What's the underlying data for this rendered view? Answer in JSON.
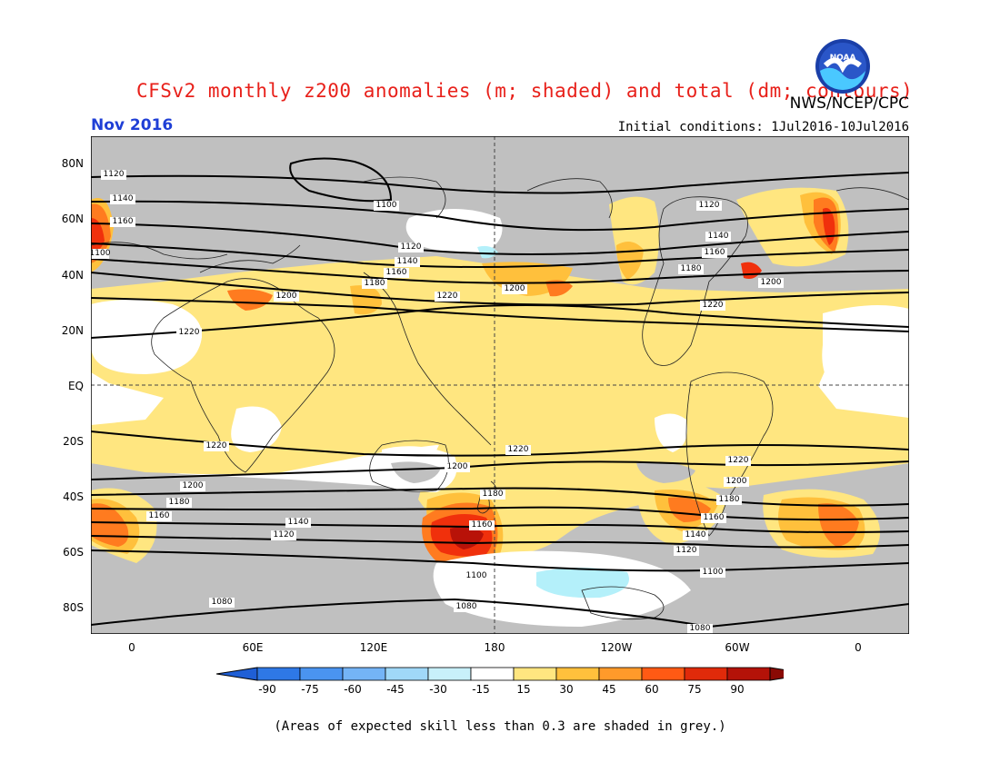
{
  "header": {
    "title": "CFSv2 monthly z200 anomalies (m; shaded) and total (dm; contours)",
    "agency": "NWS/NCEP/CPC",
    "month": "Nov 2016",
    "initial_conditions": "Initial conditions: 1Jul2016-10Jul2016",
    "logo_text": "NOAA"
  },
  "map": {
    "lat_labels": [
      "80N",
      "60N",
      "40N",
      "20N",
      "EQ",
      "20S",
      "40S",
      "60S",
      "80S"
    ],
    "lon_labels": [
      "0",
      "60E",
      "120E",
      "180",
      "120W",
      "60W",
      "0"
    ],
    "contour_labels": [
      "1120",
      "1140",
      "1160",
      "1180",
      "1100",
      "1120",
      "1140",
      "1160",
      "1180",
      "1200",
      "1160",
      "1180",
      "1200",
      "1220",
      "1200",
      "1220",
      "1120",
      "1140",
      "1160",
      "1180",
      "1200",
      "1220",
      "1220",
      "1220",
      "1200",
      "1180",
      "1160",
      "1140",
      "1120",
      "1100",
      "1080",
      "1080",
      "1080",
      "1200",
      "1180",
      "1160",
      "1140",
      "1120",
      "1100",
      "1220",
      "1200",
      "1180",
      "1160"
    ],
    "colors": {
      "grey": "#c0c0c0",
      "lightyellow": "#ffe680",
      "yellow": "#ffc03c",
      "orange": "#ff7b1f",
      "red": "#f0300c",
      "darkred": "#b81208",
      "lightblue": "#b4f0fa",
      "ocean_background": "#c0c0c0"
    }
  },
  "colorbar": {
    "labels": [
      "-90",
      "-75",
      "-60",
      "-45",
      "-30",
      "-15",
      "15",
      "30",
      "45",
      "60",
      "75",
      "90"
    ],
    "colors": [
      "#1f5fd6",
      "#2e78e6",
      "#4a94f0",
      "#74b4f6",
      "#a0d8f8",
      "#c8f0fa",
      "#ffffff",
      "#ffe680",
      "#ffc03c",
      "#ff9a2a",
      "#ff5a14",
      "#e02a0a",
      "#b41208",
      "#8a0a04"
    ]
  },
  "footer": {
    "note": "(Areas of expected skill less than 0.3 are shaded in grey.)"
  }
}
